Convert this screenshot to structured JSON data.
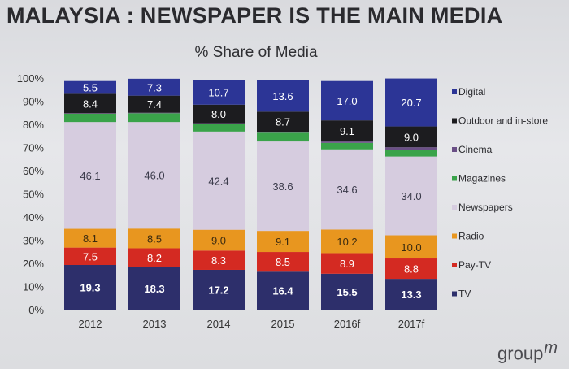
{
  "title": "MALAYSIA : NEWSPAPER IS THE MAIN MEDIA",
  "brand": {
    "text": "group",
    "mark": "m"
  },
  "chart_data": {
    "type": "bar",
    "stacked": true,
    "title": "% Share of Media",
    "categories": [
      "2012",
      "2013",
      "2014",
      "2015",
      "2016f",
      "2017f"
    ],
    "ylim": [
      0,
      100
    ],
    "yticks": [
      "0%",
      "10%",
      "20%",
      "30%",
      "40%",
      "50%",
      "60%",
      "70%",
      "80%",
      "90%",
      "100%"
    ],
    "grid": false,
    "legend_position": "right",
    "series": [
      {
        "name": "TV",
        "color": "#2d2f6b",
        "label_color": "#ffffff",
        "values": [
          19.3,
          18.3,
          17.2,
          16.4,
          15.5,
          13.3
        ],
        "labels": [
          "19.3",
          "18.3",
          "17.2",
          "16.4",
          "15.5",
          "13.3"
        ]
      },
      {
        "name": "Pay-TV",
        "color": "#d42a22",
        "label_color": "#ffffff",
        "values": [
          7.5,
          8.2,
          8.3,
          8.5,
          8.9,
          8.8
        ],
        "labels": [
          "7.5",
          "8.2",
          "8.3",
          "8.5",
          "8.9",
          "8.8"
        ]
      },
      {
        "name": "Radio",
        "color": "#e8961f",
        "label_color": "#3a2a10",
        "values": [
          8.1,
          8.5,
          9.0,
          9.1,
          10.2,
          10.0
        ],
        "labels": [
          "8.1",
          "8.5",
          "9.0",
          "9.1",
          "10.2",
          "10.0"
        ]
      },
      {
        "name": "Newspapers",
        "color": "#d6ccdf",
        "label_color": "#3a3a4a",
        "values": [
          46.1,
          46.0,
          42.4,
          38.6,
          34.6,
          34.0
        ],
        "labels": [
          "46.1",
          "46.0",
          "42.4",
          "38.6",
          "34.6",
          "34.0"
        ]
      },
      {
        "name": "Magazines",
        "color": "#3aa34a",
        "label_color": "#ffffff",
        "values": [
          3.6,
          3.8,
          3.3,
          3.8,
          2.8,
          3.0
        ],
        "labels": [
          "",
          "",
          "",
          "",
          "",
          ""
        ]
      },
      {
        "name": "Cinema",
        "color": "#6a4f86",
        "label_color": "#ffffff",
        "values": [
          0.2,
          0.2,
          0.3,
          0.4,
          0.6,
          1.0
        ],
        "labels": [
          "",
          "",
          "",
          "",
          "",
          ""
        ]
      },
      {
        "name": "Outdoor and in-store",
        "color": "#1c1c1f",
        "label_color": "#ffffff",
        "values": [
          8.4,
          7.4,
          8.0,
          8.7,
          9.1,
          9.0
        ],
        "labels": [
          "8.4",
          "7.4",
          "8.0",
          "8.7",
          "9.1",
          "9.0"
        ]
      },
      {
        "name": "Digital",
        "color": "#2c3596",
        "label_color": "#ffffff",
        "values": [
          5.5,
          7.3,
          10.7,
          13.6,
          17.0,
          20.7
        ],
        "labels": [
          "5.5",
          "7.3",
          "10.7",
          "13.6",
          "17.0",
          "20.7"
        ]
      }
    ],
    "legend_order": [
      "Digital",
      "Outdoor and in-store",
      "Cinema",
      "Magazines",
      "Newspapers",
      "Radio",
      "Pay-TV",
      "TV"
    ]
  }
}
